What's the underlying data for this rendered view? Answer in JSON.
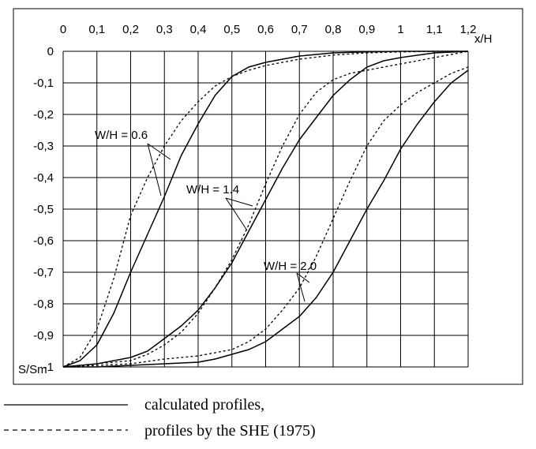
{
  "chart_data": {
    "type": "line",
    "x_axis": {
      "label": "x/H",
      "range": [
        0,
        1.2
      ],
      "ticks": [
        "0",
        "0,1",
        "0,2",
        "0,3",
        "0,4",
        "0,5",
        "0,6",
        "0,7",
        "0,8",
        "0,9",
        "1",
        "1,1",
        "1,2"
      ],
      "position": "top"
    },
    "y_axis": {
      "label": "S/Sm",
      "range": [
        -1,
        0
      ],
      "ticks": [
        "0",
        "-0,1",
        "-0,2",
        "-0,3",
        "-0,4",
        "-0,5",
        "-0,6",
        "-0,7",
        "-0,8",
        "-0,9",
        "-1"
      ]
    },
    "grid": true,
    "series": [
      {
        "name": "calculated profiles",
        "group": "W/H = 0.6",
        "style": "solid",
        "x": [
          0,
          0.05,
          0.1,
          0.15,
          0.2,
          0.25,
          0.3,
          0.35,
          0.4,
          0.45,
          0.5,
          0.55,
          0.6,
          0.7,
          0.8,
          0.9,
          1.0,
          1.1,
          1.2
        ],
        "y": [
          -1,
          -0.98,
          -0.93,
          -0.83,
          -0.7,
          -0.58,
          -0.46,
          -0.33,
          -0.23,
          -0.14,
          -0.08,
          -0.05,
          -0.035,
          -0.015,
          -0.005,
          -0.002,
          0,
          0,
          0
        ]
      },
      {
        "name": "profiles by the SHE (1975)",
        "group": "W/H = 0.6",
        "style": "dashed",
        "x": [
          0,
          0.05,
          0.1,
          0.15,
          0.2,
          0.25,
          0.3,
          0.35,
          0.4,
          0.45,
          0.5,
          0.55,
          0.6,
          0.7,
          0.8,
          0.9,
          1.0,
          1.1,
          1.2
        ],
        "y": [
          -1,
          -0.97,
          -0.88,
          -0.72,
          -0.52,
          -0.4,
          -0.3,
          -0.22,
          -0.16,
          -0.11,
          -0.08,
          -0.06,
          -0.045,
          -0.025,
          -0.012,
          -0.005,
          -0.002,
          0,
          0
        ]
      },
      {
        "name": "calculated profiles",
        "group": "W/H = 1.4",
        "style": "solid",
        "x": [
          0,
          0.1,
          0.2,
          0.25,
          0.3,
          0.35,
          0.4,
          0.45,
          0.5,
          0.55,
          0.6,
          0.65,
          0.7,
          0.75,
          0.8,
          0.85,
          0.9,
          0.95,
          1.0,
          1.1,
          1.2
        ],
        "y": [
          -1,
          -0.99,
          -0.97,
          -0.95,
          -0.91,
          -0.87,
          -0.82,
          -0.75,
          -0.67,
          -0.57,
          -0.47,
          -0.37,
          -0.28,
          -0.21,
          -0.14,
          -0.09,
          -0.05,
          -0.03,
          -0.02,
          -0.005,
          0
        ]
      },
      {
        "name": "profiles by the SHE (1975)",
        "group": "W/H = 1.4",
        "style": "dashed",
        "x": [
          0,
          0.1,
          0.2,
          0.25,
          0.3,
          0.35,
          0.4,
          0.45,
          0.5,
          0.55,
          0.6,
          0.65,
          0.7,
          0.75,
          0.8,
          0.85,
          0.9,
          0.95,
          1.0,
          1.1,
          1.2
        ],
        "y": [
          -1,
          -0.99,
          -0.98,
          -0.96,
          -0.93,
          -0.89,
          -0.83,
          -0.75,
          -0.66,
          -0.55,
          -0.42,
          -0.3,
          -0.2,
          -0.13,
          -0.09,
          -0.07,
          -0.06,
          -0.05,
          -0.04,
          -0.02,
          0
        ]
      },
      {
        "name": "calculated profiles",
        "group": "W/H = 2.0",
        "style": "solid",
        "x": [
          0,
          0.1,
          0.2,
          0.3,
          0.4,
          0.45,
          0.5,
          0.55,
          0.6,
          0.65,
          0.7,
          0.75,
          0.8,
          0.85,
          0.9,
          0.95,
          1.0,
          1.05,
          1.1,
          1.15,
          1.2
        ],
        "y": [
          -1,
          -1,
          -0.995,
          -0.99,
          -0.985,
          -0.975,
          -0.96,
          -0.945,
          -0.92,
          -0.88,
          -0.84,
          -0.78,
          -0.7,
          -0.6,
          -0.5,
          -0.41,
          -0.31,
          -0.23,
          -0.16,
          -0.1,
          -0.06
        ]
      },
      {
        "name": "profiles by the SHE (1975)",
        "group": "W/H = 2.0",
        "style": "dashed",
        "x": [
          0,
          0.1,
          0.2,
          0.3,
          0.4,
          0.45,
          0.5,
          0.55,
          0.6,
          0.65,
          0.7,
          0.75,
          0.8,
          0.85,
          0.9,
          0.95,
          1.0,
          1.05,
          1.1,
          1.15,
          1.2
        ],
        "y": [
          -1,
          -0.995,
          -0.99,
          -0.975,
          -0.965,
          -0.955,
          -0.945,
          -0.92,
          -0.88,
          -0.82,
          -0.75,
          -0.65,
          -0.53,
          -0.41,
          -0.3,
          -0.22,
          -0.17,
          -0.13,
          -0.1,
          -0.07,
          -0.05
        ]
      }
    ],
    "annotations": [
      {
        "text": "W/H = 0.6",
        "group": "W/H = 0.6"
      },
      {
        "text": "W/H = 1.4",
        "group": "W/H = 1.4"
      },
      {
        "text": "W/H = 2.0",
        "group": "W/H = 2.0"
      }
    ],
    "legend": {
      "placement": "bottom",
      "entries": [
        {
          "style": "solid",
          "label": "calculated profiles,"
        },
        {
          "style": "dashed",
          "label": "profiles by the SHE (1975)"
        }
      ]
    }
  }
}
